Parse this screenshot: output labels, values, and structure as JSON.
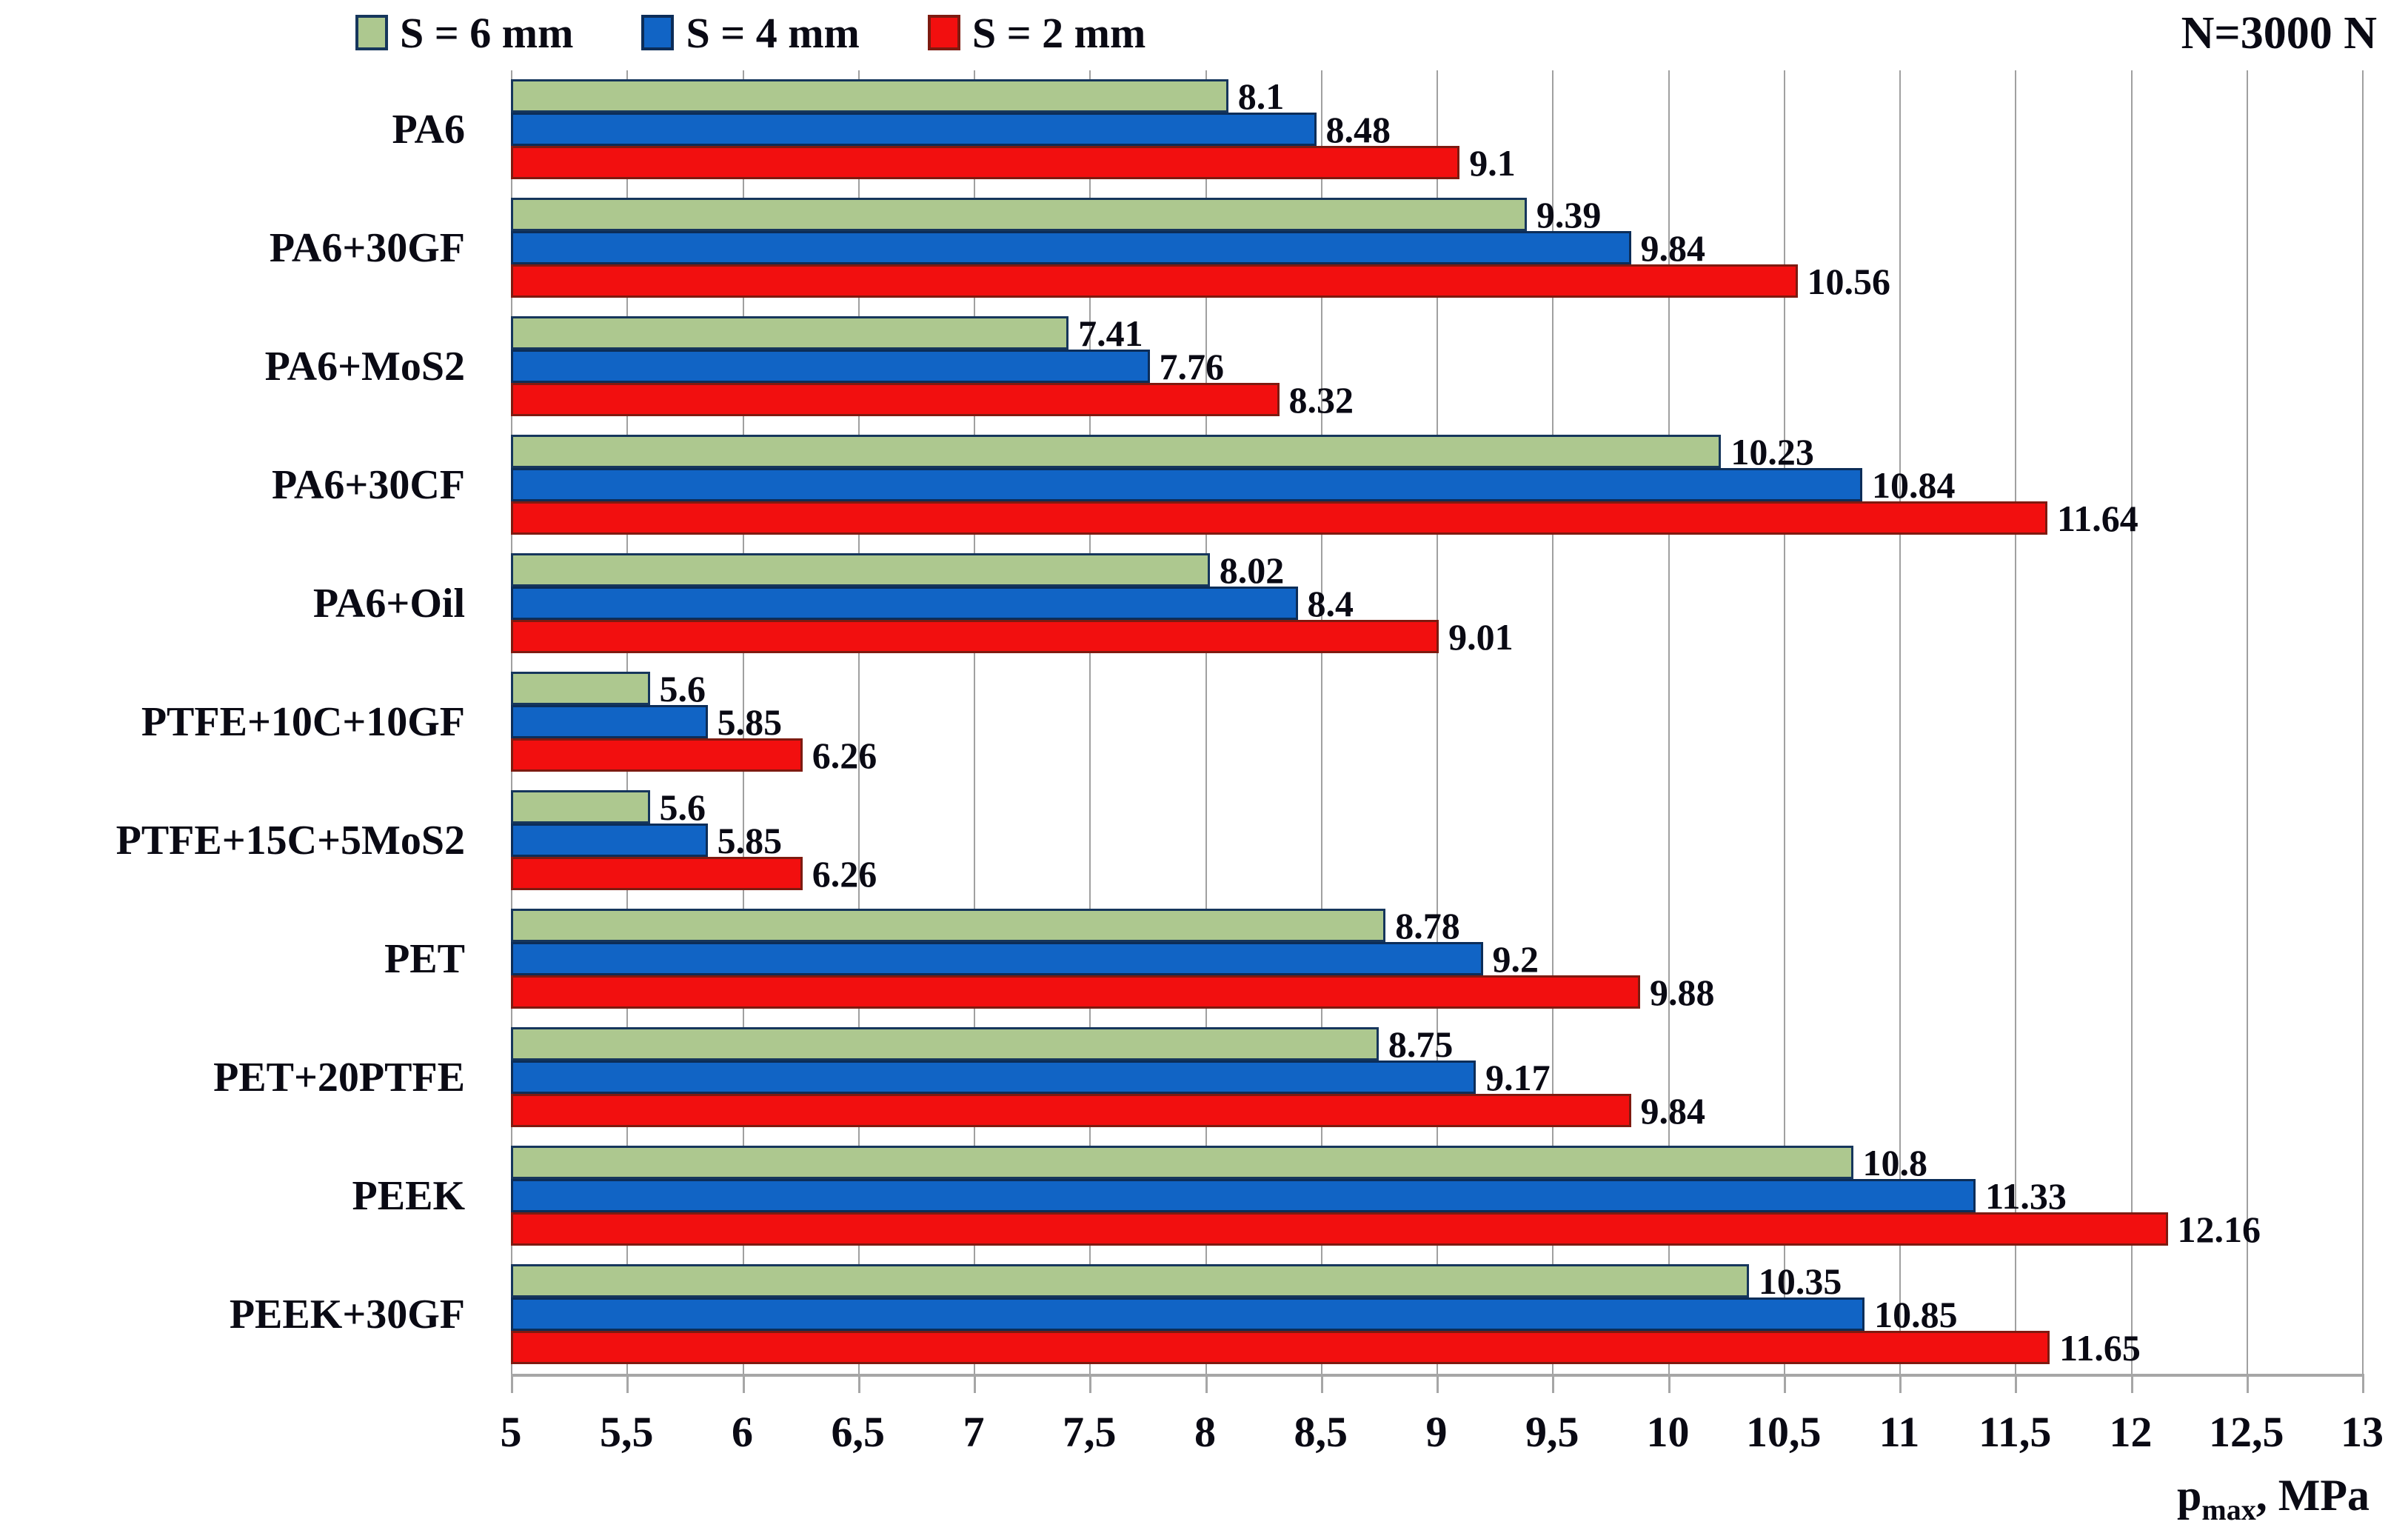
{
  "chart_data": {
    "type": "bar",
    "orientation": "horizontal",
    "title": "",
    "annotation": "N=3000 N",
    "xlabel": {
      "base": "p",
      "sub": "max",
      "rest": ",  MPa"
    },
    "xlim": [
      5,
      13
    ],
    "xtick_step": 0.5,
    "xticks": [
      "5",
      "5,5",
      "6",
      "6,5",
      "7",
      "7,5",
      "8",
      "8,5",
      "9",
      "9,5",
      "10",
      "10,5",
      "11",
      "11,5",
      "12",
      "12,5",
      "13"
    ],
    "grid": true,
    "legend_position": "top",
    "categories": [
      "PA6",
      "PA6+30GF",
      "PA6+MoS2",
      "PA6+30CF",
      "PA6+Oil",
      "PTFE+10C+10GF",
      "PTFE+15C+5MoS2",
      "PET",
      "PET+20PTFE",
      "PEEK",
      "PEEK+30GF"
    ],
    "series": [
      {
        "name": "S = 6 mm",
        "color": "#ADC88F",
        "border": "#16365C",
        "values": [
          8.1,
          9.39,
          7.41,
          10.23,
          8.02,
          5.6,
          5.6,
          8.78,
          8.75,
          10.8,
          10.35
        ],
        "labels": [
          "8.1",
          "9.39",
          "7.41",
          "10.23",
          "8.02",
          "5.6",
          "5.6",
          "8.78",
          "8.75",
          "10.8",
          "10.35"
        ]
      },
      {
        "name": "S = 4 mm",
        "color": "#1164C5",
        "border": "#0C2D58",
        "values": [
          8.48,
          9.84,
          7.76,
          10.84,
          8.4,
          5.85,
          5.85,
          9.2,
          9.17,
          11.33,
          10.85
        ],
        "labels": [
          "8.48",
          "9.84",
          "7.76",
          "10.84",
          "8.4",
          "5.85",
          "5.85",
          "9.2",
          "9.17",
          "11.33",
          "10.85"
        ]
      },
      {
        "name": "S = 2 mm",
        "color": "#F20F0F",
        "border": "#7E1A10",
        "values": [
          9.1,
          10.56,
          8.32,
          11.64,
          9.01,
          6.26,
          6.26,
          9.88,
          9.84,
          12.16,
          11.65
        ],
        "labels": [
          "9.1",
          "10.56",
          "8.32",
          "11.64",
          "9.01",
          "6.26",
          "6.26",
          "9.88",
          "9.84",
          "12.16",
          "11.65"
        ]
      }
    ]
  }
}
